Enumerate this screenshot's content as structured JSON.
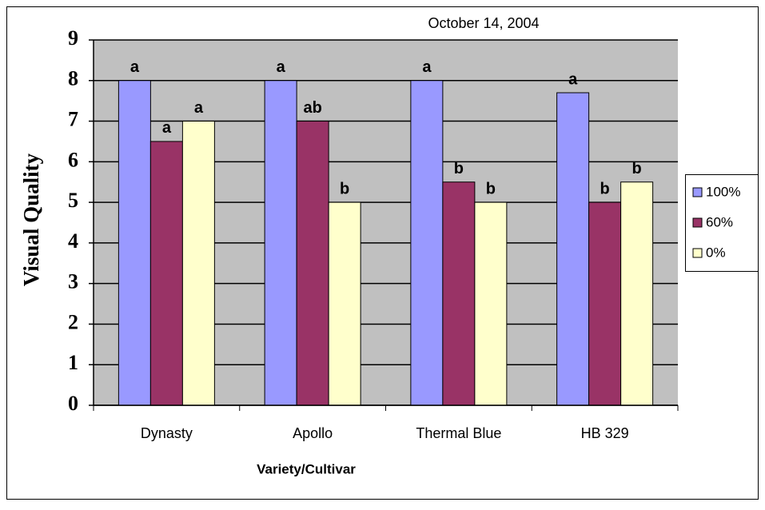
{
  "chart_data": {
    "type": "bar",
    "title": "October 14, 2004",
    "x_label": "Variety/Cultivar",
    "y_label": "Visual Quality",
    "categories": [
      "Dynasty",
      "Apollo",
      "Thermal Blue",
      "HB 329"
    ],
    "series": [
      {
        "name": "100%",
        "color": "#9999ff",
        "values": [
          8,
          8,
          8,
          7.7
        ],
        "letters": [
          "a",
          "a",
          "a",
          "a"
        ]
      },
      {
        "name": "60%",
        "color": "#993366",
        "values": [
          6.5,
          7,
          5.5,
          5
        ],
        "letters": [
          "a",
          "ab",
          "b",
          "b"
        ]
      },
      {
        "name": "0%",
        "color": "#ffffcc",
        "values": [
          7,
          5,
          5,
          5.5
        ],
        "letters": [
          "a",
          "b",
          "b",
          "b"
        ]
      }
    ],
    "ylim": [
      0,
      9
    ],
    "yticks": [
      0,
      1,
      2,
      3,
      4,
      5,
      6,
      7,
      8,
      9
    ],
    "grid": true,
    "legend": "right"
  }
}
